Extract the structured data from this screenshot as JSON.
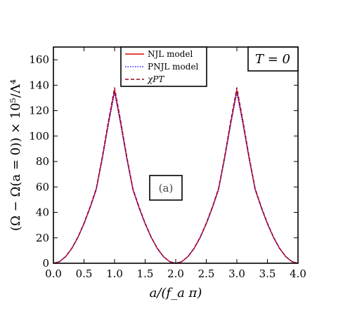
{
  "chart_data": {
    "type": "line",
    "xlabel": "a/(f_a π)",
    "ylabel": "(Ω − Ω(a = 0)) × 10⁵/Λ⁴",
    "xlim": [
      0.0,
      4.0
    ],
    "ylim": [
      0,
      170
    ],
    "xticks": [
      "0.0",
      "0.5",
      "1.0",
      "1.5",
      "2.0",
      "2.5",
      "3.0",
      "3.5",
      "4.0"
    ],
    "yticks": [
      "0",
      "20",
      "40",
      "60",
      "80",
      "100",
      "120",
      "140",
      "160"
    ],
    "legend_position": "top-center",
    "annotation": "T = 0",
    "panel_label": "(a)",
    "x": [
      0.0,
      0.1,
      0.2,
      0.3,
      0.4,
      0.5,
      0.6,
      0.7,
      0.8,
      0.9,
      1.0,
      1.1,
      1.2,
      1.3,
      1.4,
      1.5,
      1.6,
      1.7,
      1.8,
      1.9,
      2.0,
      2.1,
      2.2,
      2.3,
      2.4,
      2.5,
      2.6,
      2.7,
      2.8,
      2.9,
      3.0,
      3.1,
      3.2,
      3.3,
      3.4,
      3.5,
      3.6,
      3.7,
      3.8,
      3.9,
      4.0
    ],
    "series": [
      {
        "name": "NJL model",
        "color": "#e00000",
        "dash": "solid",
        "values": [
          0,
          1.3,
          5.2,
          11.6,
          20.3,
          31.2,
          43.9,
          58.2,
          83,
          110.5,
          136,
          110.5,
          83,
          58.2,
          43.9,
          31.2,
          20.3,
          11.6,
          5.2,
          1.3,
          0,
          1.3,
          5.2,
          11.6,
          20.3,
          31.2,
          43.9,
          58.2,
          83,
          110.5,
          136,
          110.5,
          83,
          58.2,
          43.9,
          31.2,
          20.3,
          11.6,
          5.2,
          1.3,
          0
        ]
      },
      {
        "name": "PNJL model",
        "color": "#1a1aff",
        "dash": "dotted",
        "values": [
          0,
          1.3,
          5.1,
          11.4,
          20,
          30.8,
          43.3,
          57.4,
          81.8,
          109,
          134,
          109,
          81.8,
          57.4,
          43.3,
          30.8,
          20,
          11.4,
          5.1,
          1.3,
          0,
          1.3,
          5.1,
          11.4,
          20,
          30.8,
          43.3,
          57.4,
          81.8,
          109,
          134,
          109,
          81.8,
          57.4,
          43.3,
          30.8,
          20,
          11.4,
          5.1,
          1.3,
          0
        ]
      },
      {
        "name": "χPT",
        "color": "#a00020",
        "dash": "dashed",
        "values": [
          0,
          1.3,
          5.3,
          11.8,
          20.6,
          31.6,
          44.4,
          58.8,
          84,
          112,
          138,
          112,
          84,
          58.8,
          44.4,
          31.6,
          20.6,
          11.8,
          5.3,
          1.3,
          0,
          1.3,
          5.3,
          11.8,
          20.6,
          31.6,
          44.4,
          58.8,
          84,
          112,
          138,
          112,
          84,
          58.8,
          44.4,
          31.6,
          20.6,
          11.8,
          5.3,
          1.3,
          0
        ]
      }
    ]
  }
}
